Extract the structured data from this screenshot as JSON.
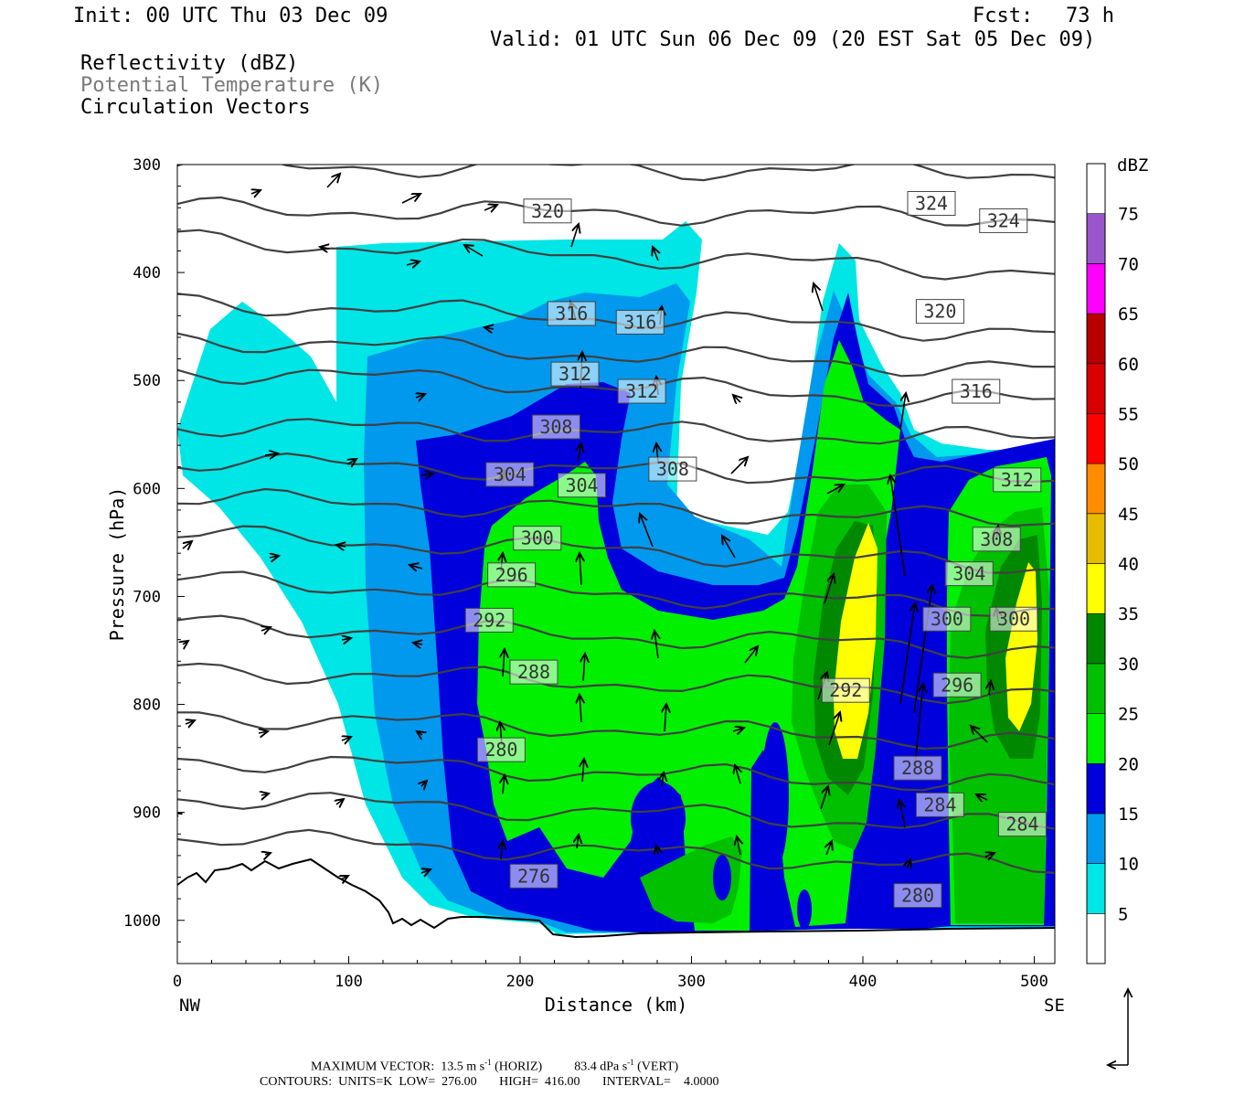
{
  "header": {
    "init": "Init: 00 UTC Thu 03 Dec 09",
    "fcst_label": "Fcst:",
    "fcst_value": "73 h",
    "valid": "Valid: 01 UTC Sun 06 Dec 09 (20 EST Sat 05 Dec 09)",
    "fields": [
      "Reflectivity (dBZ)",
      "Potential Temperature (K)",
      "Circulation Vectors"
    ]
  },
  "chart_data": {
    "type": "heatmap",
    "title": "",
    "xlabel": "Distance (km)",
    "ylabel": "Pressure (hPa)",
    "xlim": [
      0,
      512
    ],
    "ylim": [
      1040,
      300
    ],
    "x_ticks": [
      0,
      100,
      200,
      300,
      400,
      500
    ],
    "y_ticks": [
      300,
      400,
      500,
      600,
      700,
      800,
      900,
      1000
    ],
    "x_end_labels": {
      "left": "NW",
      "right": "SE"
    },
    "colorbar": {
      "unit": "dBZ",
      "levels": [
        5,
        10,
        15,
        20,
        25,
        30,
        35,
        40,
        45,
        50,
        55,
        60,
        65,
        70,
        75
      ],
      "colors": [
        "#ffffff",
        "#00e5e5",
        "#0099ee",
        "#0000dd",
        "#00f000",
        "#00c000",
        "#008800",
        "#ffff00",
        "#e6bb00",
        "#ff8c00",
        "#ff0000",
        "#d80000",
        "#b80000",
        "#ff00ff",
        "#9955cc",
        "#ffffff"
      ]
    },
    "theta_contour_labels": [
      {
        "value": "320",
        "x": 216,
        "p": 343
      },
      {
        "value": "324",
        "x": 440,
        "p": 336
      },
      {
        "value": "324",
        "x": 482,
        "p": 352
      },
      {
        "value": "316",
        "x": 230,
        "p": 438
      },
      {
        "value": "316",
        "x": 270,
        "p": 446
      },
      {
        "value": "320",
        "x": 445,
        "p": 436
      },
      {
        "value": "312",
        "x": 232,
        "p": 494
      },
      {
        "value": "312",
        "x": 271,
        "p": 510
      },
      {
        "value": "316",
        "x": 466,
        "p": 510
      },
      {
        "value": "308",
        "x": 221,
        "p": 543
      },
      {
        "value": "308",
        "x": 289,
        "p": 582
      },
      {
        "value": "304",
        "x": 194,
        "p": 587
      },
      {
        "value": "304",
        "x": 236,
        "p": 597
      },
      {
        "value": "312",
        "x": 490,
        "p": 592
      },
      {
        "value": "300",
        "x": 210,
        "p": 646
      },
      {
        "value": "308",
        "x": 478,
        "p": 647
      },
      {
        "value": "296",
        "x": 195,
        "p": 680
      },
      {
        "value": "304",
        "x": 462,
        "p": 679
      },
      {
        "value": "292",
        "x": 182,
        "p": 722
      },
      {
        "value": "300",
        "x": 449,
        "p": 721
      },
      {
        "value": "300",
        "x": 488,
        "p": 721
      },
      {
        "value": "288",
        "x": 208,
        "p": 770
      },
      {
        "value": "296",
        "x": 455,
        "p": 782
      },
      {
        "value": "292",
        "x": 390,
        "p": 787
      },
      {
        "value": "280",
        "x": 189,
        "p": 842
      },
      {
        "value": "288",
        "x": 432,
        "p": 859
      },
      {
        "value": "284",
        "x": 445,
        "p": 893
      },
      {
        "value": "284",
        "x": 493,
        "p": 911
      },
      {
        "value": "276",
        "x": 208,
        "p": 959
      },
      {
        "value": "280",
        "x": 432,
        "p": 977
      }
    ],
    "max_vector": {
      "label": "MAXIMUM VECTOR:",
      "horiz": "13.5 m s",
      "horiz_exp": "-1",
      "horiz_tag": "(HORIZ)",
      "vert": "83.4 dPa s",
      "vert_exp": "-1",
      "vert_tag": "(VERT)"
    },
    "contours": {
      "label": "CONTOURS:",
      "units": "UNITS=K",
      "low": "LOW=  276.00",
      "high": "HIGH=  416.00",
      "interval": "INTERVAL=    4.0000"
    }
  }
}
